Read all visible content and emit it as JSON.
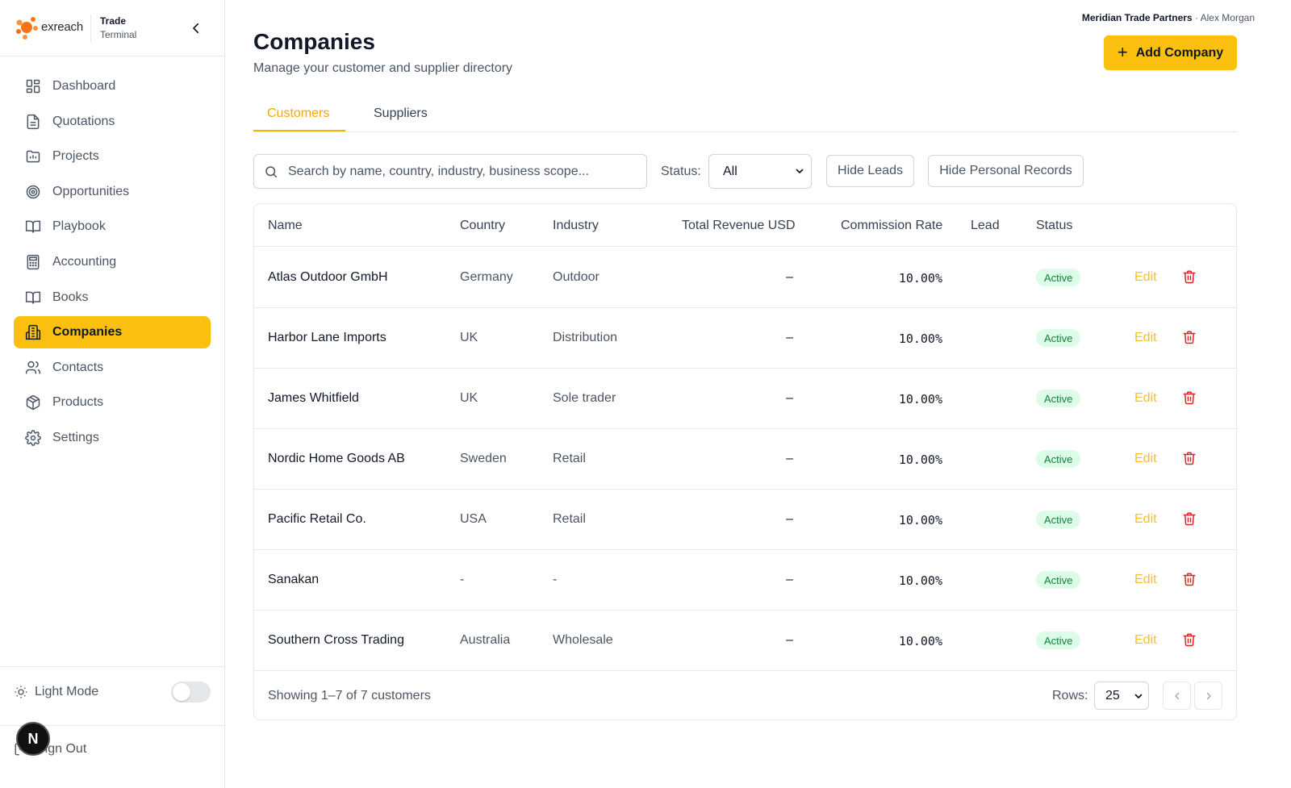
{
  "brand": {
    "logo_text": "exreach",
    "title": "Trade",
    "subtitle": "Terminal"
  },
  "sidebar": {
    "items": [
      {
        "label": "Dashboard",
        "icon": "dashboard-icon",
        "active": false
      },
      {
        "label": "Quotations",
        "icon": "document-icon",
        "active": false
      },
      {
        "label": "Projects",
        "icon": "folder-chart-icon",
        "active": false
      },
      {
        "label": "Opportunities",
        "icon": "target-icon",
        "active": false
      },
      {
        "label": "Playbook",
        "icon": "open-book-icon",
        "active": false
      },
      {
        "label": "Accounting",
        "icon": "calculator-icon",
        "active": false
      },
      {
        "label": "Books",
        "icon": "open-book-icon",
        "active": false
      },
      {
        "label": "Companies",
        "icon": "building-icon",
        "active": true
      },
      {
        "label": "Contacts",
        "icon": "users-icon",
        "active": false
      },
      {
        "label": "Products",
        "icon": "package-icon",
        "active": false
      },
      {
        "label": "Settings",
        "icon": "gear-icon",
        "active": false
      }
    ],
    "theme_label": "Light Mode",
    "theme_toggle_on": false,
    "signout_label": "Sign Out",
    "dev_badge": "N"
  },
  "header": {
    "org": "Meridian Trade Partners",
    "separator": " · ",
    "user": "Alex Morgan",
    "title": "Companies",
    "subtitle": "Manage your customer and supplier directory",
    "add_button": "Add Company"
  },
  "tabs": [
    {
      "label": "Customers",
      "active": true
    },
    {
      "label": "Suppliers",
      "active": false
    }
  ],
  "filters": {
    "search_placeholder": "Search by name, country, industry, business scope...",
    "search_value": "",
    "status_label": "Status:",
    "status_value": "All",
    "hide_leads": "Hide Leads",
    "hide_personal": "Hide Personal Records"
  },
  "table": {
    "columns": [
      "Name",
      "Country",
      "Industry",
      "Total Revenue USD",
      "Commission Rate",
      "Lead",
      "Status"
    ],
    "rows": [
      {
        "name": "Atlas Outdoor GmbH",
        "country": "Germany",
        "industry": "Outdoor",
        "revenue": "–",
        "commission": "10.00%",
        "lead": "",
        "status": "Active",
        "edit": "Edit"
      },
      {
        "name": "Harbor Lane Imports",
        "country": "UK",
        "industry": "Distribution",
        "revenue": "–",
        "commission": "10.00%",
        "lead": "",
        "status": "Active",
        "edit": "Edit"
      },
      {
        "name": "James Whitfield",
        "country": "UK",
        "industry": "Sole trader",
        "revenue": "–",
        "commission": "10.00%",
        "lead": "",
        "status": "Active",
        "edit": "Edit"
      },
      {
        "name": "Nordic Home Goods AB",
        "country": "Sweden",
        "industry": "Retail",
        "revenue": "–",
        "commission": "10.00%",
        "lead": "",
        "status": "Active",
        "edit": "Edit"
      },
      {
        "name": "Pacific Retail Co.",
        "country": "USA",
        "industry": "Retail",
        "revenue": "–",
        "commission": "10.00%",
        "lead": "",
        "status": "Active",
        "edit": "Edit"
      },
      {
        "name": "Sanakan",
        "country": "-",
        "industry": "-",
        "revenue": "–",
        "commission": "10.00%",
        "lead": "",
        "status": "Active",
        "edit": "Edit"
      },
      {
        "name": "Southern Cross Trading",
        "country": "Australia",
        "industry": "Wholesale",
        "revenue": "–",
        "commission": "10.00%",
        "lead": "",
        "status": "Active",
        "edit": "Edit"
      }
    ],
    "footer": {
      "showing": "Showing 1–7 of 7 customers",
      "rows_label": "Rows:",
      "rows_value": "25"
    }
  },
  "colors": {
    "accent": "#fbbf0f",
    "status_active_bg": "#dcfce7",
    "status_active_text": "#15803d",
    "delete": "#dc2626",
    "edit": "#fbbf24"
  }
}
